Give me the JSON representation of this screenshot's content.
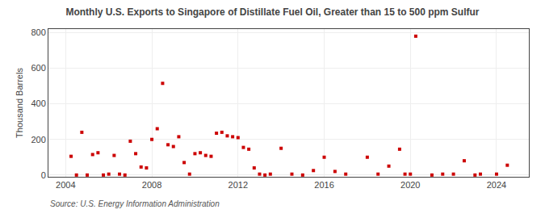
{
  "chart_data": {
    "type": "scatter",
    "title": "Monthly U.S. Exports to Singapore of Distillate Fuel Oil, Greater than 15 to 500 ppm Sulfur",
    "ylabel": "Thousand Barrels",
    "source": "Source: U.S. Energy Information Administration",
    "color": "#cc0000",
    "marker": "square",
    "grid": true,
    "xlim": [
      2003.2,
      2025.5
    ],
    "ylim": [
      -10,
      820
    ],
    "xticks": [
      2004,
      2008,
      2012,
      2016,
      2020,
      2024
    ],
    "yticks": [
      0,
      200,
      400,
      600,
      800
    ],
    "x": [
      2004.25,
      2004.5,
      2004.75,
      2005.0,
      2005.25,
      2005.5,
      2005.75,
      2006.0,
      2006.25,
      2006.5,
      2006.75,
      2007.0,
      2007.25,
      2007.5,
      2007.75,
      2008.0,
      2008.25,
      2008.5,
      2008.75,
      2009.0,
      2009.25,
      2009.5,
      2009.75,
      2010.0,
      2010.25,
      2010.5,
      2010.75,
      2011.0,
      2011.25,
      2011.5,
      2011.75,
      2012.0,
      2012.25,
      2012.5,
      2012.75,
      2013.0,
      2013.25,
      2013.5,
      2014.0,
      2014.5,
      2015.0,
      2015.5,
      2016.0,
      2016.5,
      2017.0,
      2018.0,
      2018.5,
      2019.0,
      2019.5,
      2019.75,
      2020.0,
      2020.25,
      2021.0,
      2021.5,
      2022.0,
      2022.5,
      2023.0,
      2023.25,
      2024.0,
      2024.5
    ],
    "values": [
      105,
      0,
      240,
      0,
      115,
      125,
      0,
      5,
      110,
      5,
      0,
      190,
      120,
      45,
      40,
      200,
      260,
      515,
      170,
      160,
      215,
      70,
      5,
      120,
      125,
      110,
      105,
      235,
      240,
      220,
      215,
      210,
      155,
      145,
      40,
      5,
      0,
      5,
      150,
      5,
      0,
      25,
      100,
      20,
      5,
      100,
      5,
      50,
      145,
      5,
      5,
      780,
      0,
      5,
      5,
      80,
      0,
      5,
      5,
      55
    ]
  }
}
